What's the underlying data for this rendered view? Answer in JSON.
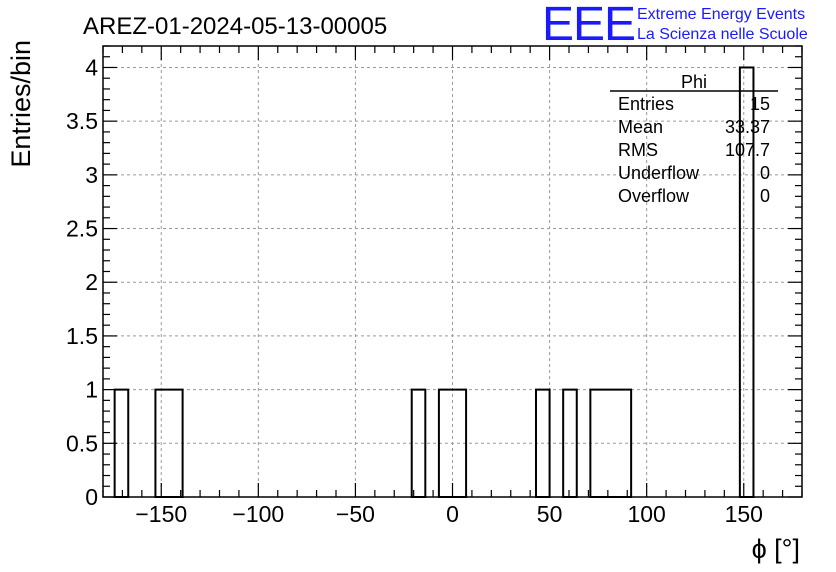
{
  "chart_data": {
    "type": "bar",
    "title": "AREZ-01-2024-05-13-00005",
    "xlabel": "ϕ [°]",
    "ylabel": "Entries/bin",
    "xlim": [
      -180,
      180
    ],
    "ylim": [
      0,
      4.2
    ],
    "grid": true,
    "x_ticks": [
      -150,
      -100,
      -50,
      0,
      50,
      100,
      150
    ],
    "x_tick_labels": [
      "−150",
      "−100",
      "−50",
      "0",
      "50",
      "100",
      "150"
    ],
    "y_ticks": [
      0,
      0.5,
      1,
      1.5,
      2,
      2.5,
      3,
      3.5,
      4
    ],
    "y_tick_labels": [
      "0",
      "0.5",
      "1",
      "1.5",
      "2",
      "2.5",
      "3",
      "3.5",
      "4"
    ],
    "bins": [
      {
        "x0": -174,
        "x1": -167,
        "value": 1
      },
      {
        "x0": -153,
        "x1": -139,
        "value": 1
      },
      {
        "x0": -21,
        "x1": -14,
        "value": 1
      },
      {
        "x0": -7,
        "x1": 7,
        "value": 1
      },
      {
        "x0": 43,
        "x1": 50,
        "value": 1
      },
      {
        "x0": 57,
        "x1": 64,
        "value": 1
      },
      {
        "x0": 71,
        "x1": 92,
        "value": 1
      },
      {
        "x0": 148,
        "x1": 155,
        "value": 4
      }
    ]
  },
  "stats_box": {
    "title": "Phi",
    "rows": [
      {
        "label": "Entries",
        "value": "15"
      },
      {
        "label": "Mean",
        "value": "33.37"
      },
      {
        "label": "RMS",
        "value": "107.7"
      },
      {
        "label": "Underflow",
        "value": "0"
      },
      {
        "label": "Overflow",
        "value": "0"
      }
    ]
  },
  "logo": {
    "mark": "EEE",
    "line1": "Extreme Energy Events",
    "line2": "La Scienza nelle Scuole",
    "color": "#1a1aff"
  }
}
